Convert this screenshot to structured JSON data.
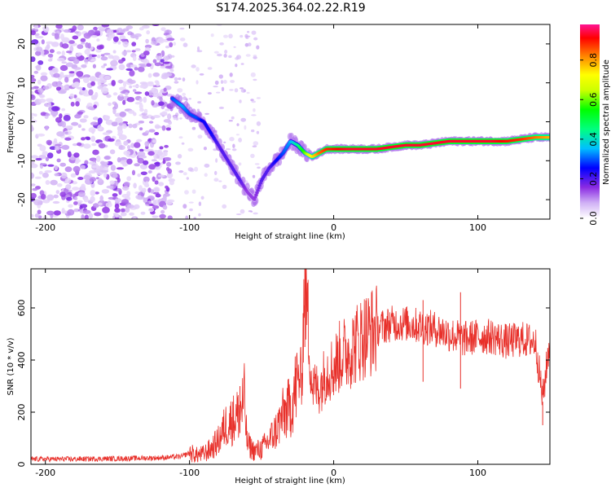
{
  "title": "S174.2025.364.02.22.R19",
  "chart_data": [
    {
      "type": "heatmap",
      "name": "spectrogram",
      "xlabel": "Height of straight line (km)",
      "ylabel": "Frequency (Hz)",
      "xlim": [
        -210,
        150
      ],
      "ylim": [
        -25,
        25
      ],
      "xticks": [
        -200,
        -100,
        0,
        100
      ],
      "yticks": [
        -20,
        -10,
        0,
        10,
        20
      ],
      "colorbar": {
        "label": "Normalized spectral amplitude",
        "range": [
          0,
          0.98
        ],
        "ticks": [
          0.0,
          0.2,
          0.4,
          0.6,
          0.8
        ]
      },
      "ridge": {
        "x": [
          -112,
          -105,
          -100,
          -95,
          -90,
          -85,
          -80,
          -75,
          -70,
          -65,
          -60,
          -55,
          -50,
          -45,
          -40,
          -35,
          -30,
          -25,
          -20,
          -15,
          -10,
          -5,
          0,
          10,
          20,
          30,
          40,
          50,
          60,
          70,
          80,
          90,
          100,
          110,
          120,
          130,
          140,
          150
        ],
        "y": [
          6,
          4,
          2,
          1,
          0,
          -3,
          -6,
          -9,
          -12,
          -15,
          -18,
          -20,
          -15,
          -12,
          -10,
          -8,
          -5,
          -6,
          -8,
          -9,
          -8,
          -7,
          -7,
          -7,
          -7,
          -7,
          -6.5,
          -6,
          -6,
          -5.5,
          -5,
          -5,
          -5,
          -5,
          -5,
          -4.5,
          -4,
          -4
        ],
        "amp": [
          0.3,
          0.35,
          0.3,
          0.3,
          0.25,
          0.25,
          0.2,
          0.2,
          0.2,
          0.2,
          0.15,
          0.15,
          0.2,
          0.2,
          0.25,
          0.3,
          0.35,
          0.45,
          0.6,
          0.75,
          0.85,
          0.9,
          0.92,
          0.95,
          0.95,
          0.95,
          0.95,
          0.95,
          0.95,
          0.95,
          0.95,
          0.95,
          0.95,
          0.95,
          0.92,
          0.9,
          0.85,
          0.8
        ]
      },
      "noise_region": [
        -210,
        -112
      ]
    },
    {
      "type": "line",
      "name": "snr",
      "xlabel": "Height of straight line (km)",
      "ylabel": "SNR (10 * v/v)",
      "xlim": [
        -210,
        150
      ],
      "ylim": [
        0,
        750
      ],
      "xticks": [
        -200,
        -100,
        0,
        100
      ],
      "yticks": [
        0,
        200,
        400,
        600
      ],
      "color": "#e8302a",
      "series": [
        {
          "name": "SNR",
          "x": [
            -210,
            -180,
            -150,
            -120,
            -105,
            -100,
            -95,
            -90,
            -85,
            -80,
            -75,
            -70,
            -65,
            -62,
            -60,
            -55,
            -50,
            -45,
            -40,
            -35,
            -30,
            -25,
            -22,
            -20,
            -15,
            -10,
            -5,
            0,
            5,
            10,
            20,
            30,
            40,
            50,
            60,
            70,
            80,
            90,
            100,
            110,
            120,
            130,
            140,
            145,
            150
          ],
          "y": [
            20,
            20,
            22,
            25,
            30,
            45,
            35,
            40,
            60,
            90,
            150,
            170,
            200,
            250,
            80,
            50,
            60,
            90,
            130,
            190,
            220,
            320,
            340,
            750,
            300,
            290,
            360,
            370,
            420,
            430,
            490,
            520,
            540,
            540,
            530,
            520,
            500,
            480,
            490,
            490,
            470,
            480,
            470,
            250,
            480
          ]
        }
      ],
      "spikes": [
        {
          "x": -20,
          "y": 750
        },
        {
          "x": -65,
          "y": 300
        },
        {
          "x": -70,
          "y": 240
        },
        {
          "x": 88,
          "y": 660
        },
        {
          "x": 62,
          "y": 630
        },
        {
          "x": 145,
          "y": 240
        }
      ]
    }
  ]
}
